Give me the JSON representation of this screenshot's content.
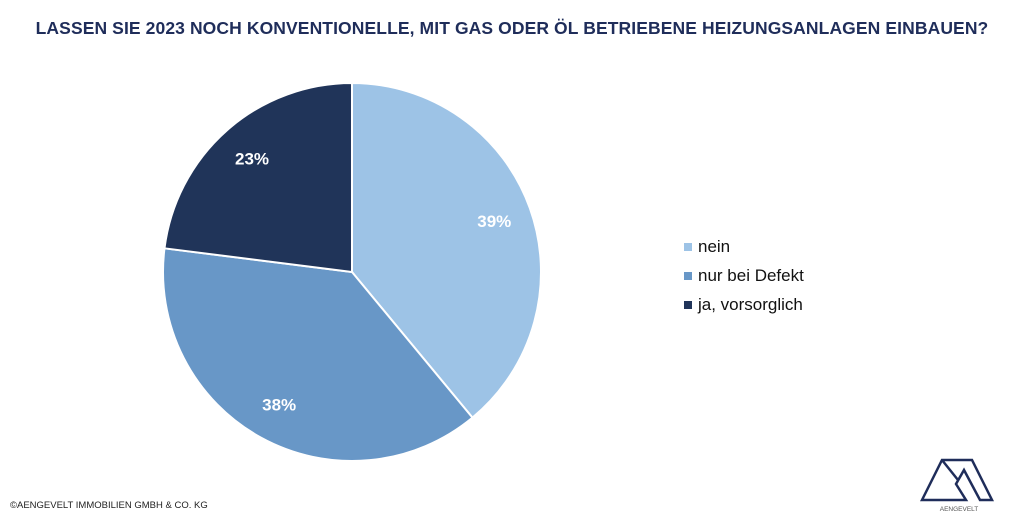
{
  "chart_data": {
    "type": "pie",
    "title": "LASSEN SIE 2023 NOCH KONVENTIONELLE, MIT GAS ODER ÖL BETRIEBENE HEIZUNGSANLAGEN EINBAUEN?",
    "categories": [
      "nein",
      "nur bei Defekt",
      "ja, vorsorglich"
    ],
    "values": [
      39,
      38,
      23
    ],
    "data_labels": [
      "39%",
      "38%",
      "23%"
    ],
    "colors": [
      "#9dc3e6",
      "#6897c7",
      "#203459"
    ],
    "start": "top, clockwise",
    "legend": "right"
  },
  "footer": {
    "copyright": "©AENGEVELT IMMOBILIEN GMBH & CO. KG",
    "logo_text": "AENGEVELT"
  }
}
